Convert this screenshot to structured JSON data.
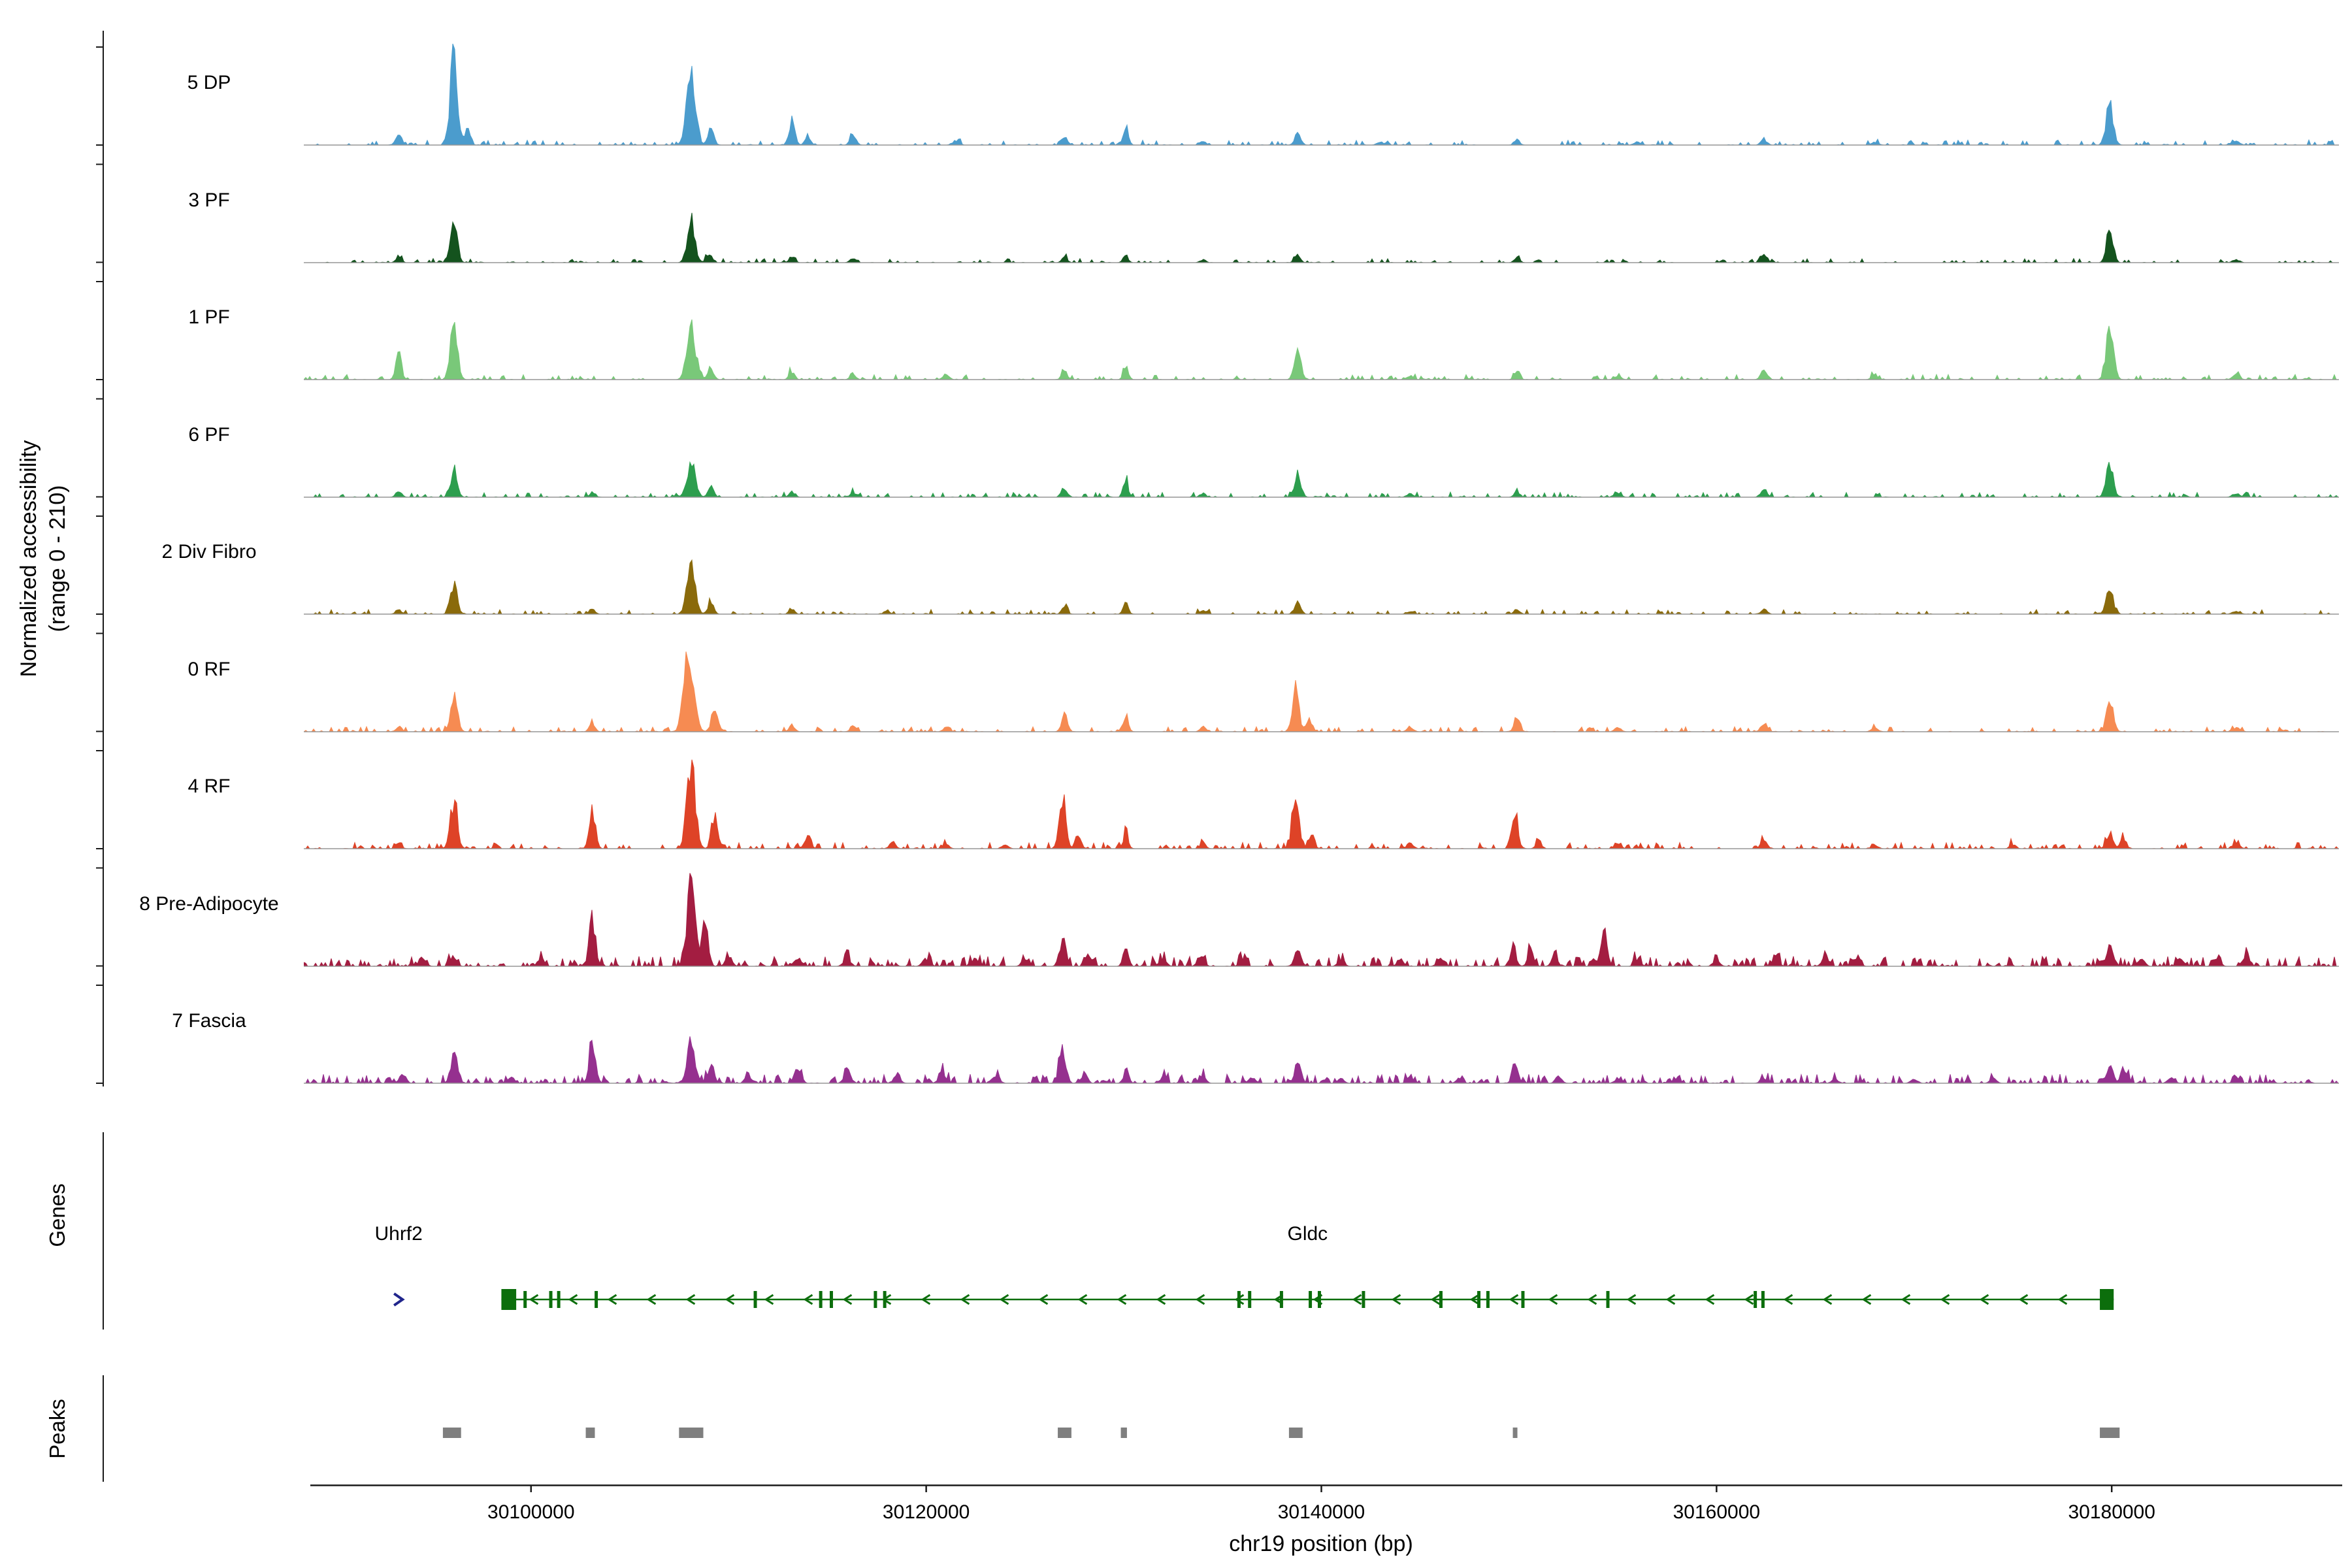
{
  "y_axis": {
    "label_line1": "Normalized accessibility",
    "label_line2": "(range 0 - 210)"
  },
  "x_axis": {
    "title": "chr19 position (bp)",
    "ticks": [
      30100000,
      30120000,
      30140000,
      30160000,
      30180000
    ]
  },
  "sections": {
    "genes_label": "Genes",
    "peaks_label": "Peaks"
  },
  "chart_data": {
    "type": "area",
    "title": "",
    "xlabel": "chr19 position (bp)",
    "ylabel": "Normalized accessibility (range 0 - 210)",
    "region": {
      "chrom": "chr19",
      "start": 30088500,
      "end": 30191500
    },
    "ylim": [
      0,
      210
    ],
    "baseline_color": "#969696",
    "peak_box_color": "#7f7f7f",
    "tracks": [
      {
        "label": "5 DP",
        "color": "#4B9CCD",
        "noise": 0.05,
        "noise_density": 0.3,
        "peaks": [
          [
            30093300,
            0.12,
            200
          ],
          [
            30096100,
            0.92,
            260
          ],
          [
            30096800,
            0.18,
            180
          ],
          [
            30108100,
            0.68,
            320
          ],
          [
            30109100,
            0.15,
            220
          ],
          [
            30113200,
            0.26,
            200
          ],
          [
            30114000,
            0.08,
            200
          ],
          [
            30116300,
            0.1,
            200
          ],
          [
            30121500,
            0.04,
            250
          ],
          [
            30127000,
            0.09,
            200
          ],
          [
            30130100,
            0.2,
            180
          ],
          [
            30134000,
            0.04,
            200
          ],
          [
            30138800,
            0.12,
            220
          ],
          [
            30143000,
            0.03,
            250
          ],
          [
            30149900,
            0.05,
            200
          ],
          [
            30156000,
            0.03,
            250
          ],
          [
            30162400,
            0.05,
            220
          ],
          [
            30168000,
            0.03,
            250
          ],
          [
            30179900,
            0.4,
            260
          ],
          [
            30186300,
            0.04,
            250
          ]
        ]
      },
      {
        "label": "3 PF",
        "color": "#14531E",
        "noise": 0.04,
        "noise_density": 0.28,
        "peaks": [
          [
            30093300,
            0.06,
            200
          ],
          [
            30096100,
            0.4,
            240
          ],
          [
            30108100,
            0.42,
            280
          ],
          [
            30109000,
            0.1,
            200
          ],
          [
            30113200,
            0.06,
            200
          ],
          [
            30116300,
            0.05,
            200
          ],
          [
            30127000,
            0.05,
            200
          ],
          [
            30130100,
            0.07,
            180
          ],
          [
            30134000,
            0.03,
            200
          ],
          [
            30138800,
            0.07,
            200
          ],
          [
            30149900,
            0.04,
            200
          ],
          [
            30162400,
            0.08,
            220
          ],
          [
            30179900,
            0.34,
            240
          ],
          [
            30186300,
            0.03,
            250
          ]
        ]
      },
      {
        "label": "1 PF",
        "color": "#79C879",
        "noise": 0.05,
        "noise_density": 0.32,
        "peaks": [
          [
            30093300,
            0.26,
            200
          ],
          [
            30096100,
            0.6,
            250
          ],
          [
            30108100,
            0.52,
            300
          ],
          [
            30109100,
            0.12,
            200
          ],
          [
            30113200,
            0.08,
            200
          ],
          [
            30116300,
            0.06,
            200
          ],
          [
            30121000,
            0.05,
            220
          ],
          [
            30127000,
            0.08,
            200
          ],
          [
            30130100,
            0.13,
            180
          ],
          [
            30138800,
            0.28,
            230
          ],
          [
            30144500,
            0.04,
            220
          ],
          [
            30149900,
            0.08,
            200
          ],
          [
            30155000,
            0.04,
            220
          ],
          [
            30162400,
            0.11,
            220
          ],
          [
            30168000,
            0.04,
            220
          ],
          [
            30179900,
            0.52,
            260
          ],
          [
            30186300,
            0.05,
            250
          ]
        ]
      },
      {
        "label": "6 PF",
        "color": "#2D9E4E",
        "noise": 0.05,
        "noise_density": 0.3,
        "peaks": [
          [
            30093300,
            0.07,
            200
          ],
          [
            30096100,
            0.28,
            240
          ],
          [
            30103100,
            0.05,
            200
          ],
          [
            30108100,
            0.32,
            300
          ],
          [
            30109100,
            0.1,
            200
          ],
          [
            30113200,
            0.06,
            200
          ],
          [
            30116300,
            0.05,
            200
          ],
          [
            30127000,
            0.1,
            200
          ],
          [
            30130100,
            0.17,
            180
          ],
          [
            30134000,
            0.04,
            200
          ],
          [
            30138800,
            0.23,
            230
          ],
          [
            30144500,
            0.04,
            220
          ],
          [
            30149900,
            0.06,
            200
          ],
          [
            30155000,
            0.04,
            220
          ],
          [
            30162400,
            0.09,
            220
          ],
          [
            30179900,
            0.31,
            260
          ],
          [
            30186300,
            0.04,
            250
          ]
        ]
      },
      {
        "label": "2 Div Fibro",
        "color": "#8A6A0B",
        "noise": 0.045,
        "noise_density": 0.3,
        "peaks": [
          [
            30093300,
            0.05,
            200
          ],
          [
            30096100,
            0.3,
            240
          ],
          [
            30103100,
            0.05,
            200
          ],
          [
            30108100,
            0.46,
            300
          ],
          [
            30109100,
            0.12,
            200
          ],
          [
            30113200,
            0.05,
            200
          ],
          [
            30118000,
            0.04,
            200
          ],
          [
            30127000,
            0.07,
            200
          ],
          [
            30130100,
            0.11,
            180
          ],
          [
            30134000,
            0.04,
            200
          ],
          [
            30138800,
            0.11,
            220
          ],
          [
            30144500,
            0.03,
            220
          ],
          [
            30149900,
            0.05,
            200
          ],
          [
            30162400,
            0.05,
            220
          ],
          [
            30179900,
            0.24,
            250
          ],
          [
            30186300,
            0.03,
            250
          ]
        ]
      },
      {
        "label": "0 RF",
        "color": "#F68B52",
        "noise": 0.05,
        "noise_density": 0.32,
        "peaks": [
          [
            30093300,
            0.05,
            200
          ],
          [
            30096100,
            0.38,
            250
          ],
          [
            30103100,
            0.08,
            200
          ],
          [
            30108000,
            0.8,
            350
          ],
          [
            30109300,
            0.25,
            220
          ],
          [
            30113200,
            0.07,
            200
          ],
          [
            30116300,
            0.05,
            200
          ],
          [
            30121000,
            0.04,
            220
          ],
          [
            30127000,
            0.17,
            210
          ],
          [
            30130100,
            0.14,
            180
          ],
          [
            30134000,
            0.05,
            200
          ],
          [
            30138700,
            0.42,
            240
          ],
          [
            30139400,
            0.12,
            200
          ],
          [
            30144500,
            0.05,
            220
          ],
          [
            30149900,
            0.17,
            200
          ],
          [
            30155000,
            0.04,
            220
          ],
          [
            30162400,
            0.09,
            220
          ],
          [
            30168000,
            0.04,
            220
          ],
          [
            30179900,
            0.26,
            260
          ],
          [
            30186300,
            0.04,
            250
          ]
        ]
      },
      {
        "label": "4 RF",
        "color": "#DE4327",
        "noise": 0.06,
        "noise_density": 0.35,
        "peaks": [
          [
            30093300,
            0.06,
            200
          ],
          [
            30096100,
            0.46,
            250
          ],
          [
            30103100,
            0.38,
            220
          ],
          [
            30108100,
            0.92,
            300
          ],
          [
            30109300,
            0.3,
            220
          ],
          [
            30114000,
            0.13,
            220
          ],
          [
            30118300,
            0.07,
            220
          ],
          [
            30121000,
            0.05,
            220
          ],
          [
            30124000,
            0.05,
            220
          ],
          [
            30126900,
            0.52,
            230
          ],
          [
            30127700,
            0.15,
            200
          ],
          [
            30130100,
            0.16,
            180
          ],
          [
            30134000,
            0.06,
            200
          ],
          [
            30138700,
            0.52,
            240
          ],
          [
            30139500,
            0.15,
            200
          ],
          [
            30144500,
            0.06,
            220
          ],
          [
            30149800,
            0.36,
            220
          ],
          [
            30151000,
            0.08,
            200
          ],
          [
            30155000,
            0.05,
            220
          ],
          [
            30162400,
            0.09,
            220
          ],
          [
            30168000,
            0.04,
            220
          ],
          [
            30175000,
            0.04,
            220
          ],
          [
            30179900,
            0.16,
            240
          ],
          [
            30180600,
            0.1,
            200
          ],
          [
            30186300,
            0.05,
            250
          ]
        ]
      },
      {
        "label": "8 Pre-Adipocyte",
        "color": "#A31D41",
        "noise": 0.1,
        "noise_density": 0.5,
        "peaks": [
          [
            30094500,
            0.07,
            250
          ],
          [
            30096100,
            0.1,
            220
          ],
          [
            30100500,
            0.08,
            220
          ],
          [
            30103100,
            0.42,
            230
          ],
          [
            30108100,
            0.88,
            280
          ],
          [
            30108800,
            0.45,
            220
          ],
          [
            30110000,
            0.1,
            220
          ],
          [
            30113500,
            0.09,
            250
          ],
          [
            30116000,
            0.07,
            250
          ],
          [
            30120000,
            0.08,
            250
          ],
          [
            30122500,
            0.08,
            250
          ],
          [
            30125000,
            0.07,
            230
          ],
          [
            30126900,
            0.28,
            220
          ],
          [
            30128200,
            0.12,
            200
          ],
          [
            30130100,
            0.16,
            190
          ],
          [
            30132000,
            0.08,
            220
          ],
          [
            30133900,
            0.11,
            220
          ],
          [
            30136000,
            0.07,
            220
          ],
          [
            30138800,
            0.16,
            230
          ],
          [
            30141000,
            0.06,
            220
          ],
          [
            30144000,
            0.08,
            220
          ],
          [
            30146000,
            0.07,
            220
          ],
          [
            30149700,
            0.2,
            210
          ],
          [
            30150600,
            0.16,
            200
          ],
          [
            30151800,
            0.14,
            200
          ],
          [
            30154300,
            0.34,
            230
          ],
          [
            30156000,
            0.07,
            220
          ],
          [
            30160000,
            0.07,
            230
          ],
          [
            30163000,
            0.09,
            230
          ],
          [
            30165500,
            0.11,
            230
          ],
          [
            30167000,
            0.08,
            230
          ],
          [
            30179900,
            0.2,
            250
          ],
          [
            30181500,
            0.07,
            230
          ],
          [
            30183500,
            0.08,
            230
          ],
          [
            30185300,
            0.1,
            230
          ],
          [
            30186800,
            0.12,
            230
          ]
        ]
      },
      {
        "label": "7 Fascia",
        "color": "#95308F",
        "noise": 0.09,
        "noise_density": 0.5,
        "peaks": [
          [
            30093500,
            0.09,
            220
          ],
          [
            30096100,
            0.3,
            240
          ],
          [
            30099000,
            0.06,
            220
          ],
          [
            30103100,
            0.4,
            230
          ],
          [
            30108100,
            0.42,
            280
          ],
          [
            30109100,
            0.18,
            220
          ],
          [
            30111000,
            0.08,
            220
          ],
          [
            30113500,
            0.14,
            240
          ],
          [
            30116000,
            0.09,
            240
          ],
          [
            30118500,
            0.07,
            240
          ],
          [
            30120800,
            0.11,
            240
          ],
          [
            30123500,
            0.08,
            240
          ],
          [
            30126900,
            0.36,
            230
          ],
          [
            30128000,
            0.1,
            200
          ],
          [
            30130100,
            0.11,
            190
          ],
          [
            30132000,
            0.06,
            220
          ],
          [
            30134000,
            0.06,
            220
          ],
          [
            30136500,
            0.06,
            220
          ],
          [
            30138800,
            0.2,
            230
          ],
          [
            30141000,
            0.05,
            220
          ],
          [
            30144500,
            0.07,
            220
          ],
          [
            30147000,
            0.06,
            220
          ],
          [
            30149800,
            0.14,
            210
          ],
          [
            30152000,
            0.06,
            220
          ],
          [
            30155000,
            0.05,
            220
          ],
          [
            30158000,
            0.04,
            220
          ],
          [
            30162400,
            0.05,
            230
          ],
          [
            30166000,
            0.04,
            230
          ],
          [
            30170000,
            0.04,
            230
          ],
          [
            30174000,
            0.04,
            230
          ],
          [
            30179900,
            0.18,
            250
          ],
          [
            30180700,
            0.1,
            220
          ],
          [
            30183000,
            0.05,
            230
          ],
          [
            30186300,
            0.05,
            230
          ]
        ]
      }
    ],
    "genes": [
      {
        "name": "Uhrf2",
        "strand": "+",
        "position": 30093300,
        "color": "#20258C"
      },
      {
        "name": "Gldc",
        "strand": "-",
        "start": 30098500,
        "end": 30180100,
        "color": "#0C6E0C",
        "utr_blocks": [
          [
            30098500,
            30099250
          ],
          [
            30179400,
            30180100
          ]
        ],
        "exons": [
          30099700,
          30101000,
          30101400,
          30103300,
          30111350,
          30114660,
          30115200,
          30117430,
          30117900,
          30135830,
          30136370,
          30137980,
          30139440,
          30139900,
          30142130,
          30146050,
          30147970,
          30148430,
          30150200,
          30154500,
          30161960,
          30162350
        ]
      }
    ],
    "peak_regions": [
      [
        30095540,
        30096460
      ],
      [
        30102770,
        30103230
      ],
      [
        30107490,
        30108720
      ],
      [
        30126660,
        30127350
      ],
      [
        30129850,
        30130160
      ],
      [
        30138360,
        30139050
      ],
      [
        30149690,
        30149920
      ],
      [
        30179400,
        30180400
      ]
    ]
  }
}
